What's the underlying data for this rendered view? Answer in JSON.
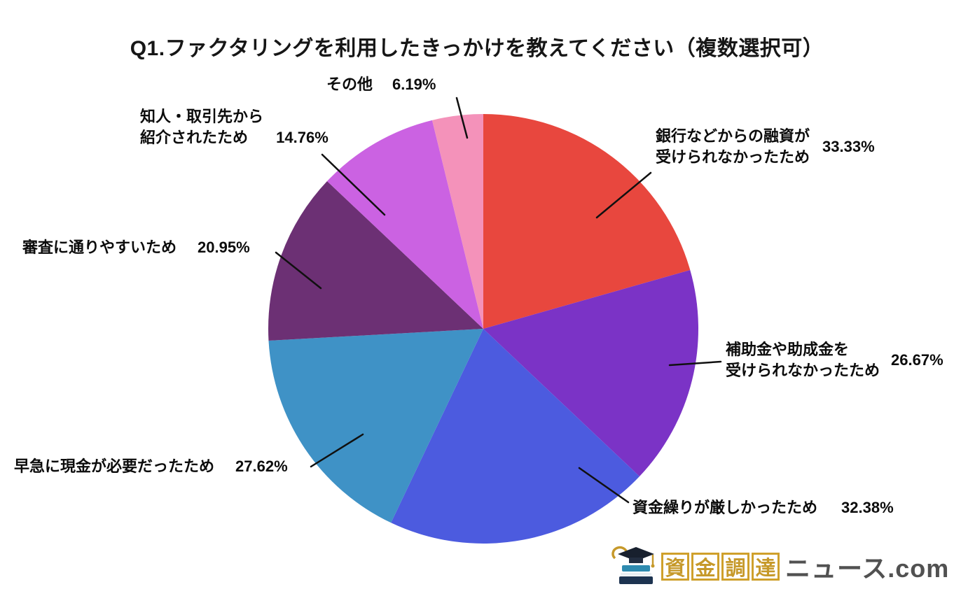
{
  "title": "Q1.ファクタリングを利用したきっかけを教えてください（複数選択可）",
  "chart_data": {
    "type": "pie",
    "title": "Q1.ファクタリングを利用したきっかけを教えてください（複数選択可）",
    "unit": "%",
    "note": "複数選択可 — percentages sum to 161.9; slice angles drawn proportional to values, clockwise from 12 o'clock",
    "direction": "clockwise",
    "start_angle": "12-o'clock",
    "slices": [
      {
        "key": "bank-loan",
        "label": "銀行などからの融資が受けられなかったため",
        "value": 33.33,
        "display": "33.33%",
        "color": "#E8473E"
      },
      {
        "key": "subsidy",
        "label": "補助金や助成金を受けられなかったため",
        "value": 26.67,
        "display": "26.67%",
        "color": "#7B33C6"
      },
      {
        "key": "cash-flow",
        "label": "資金繰りが厳しかったため",
        "value": 32.38,
        "display": "32.38%",
        "color": "#4C5BDF"
      },
      {
        "key": "urgent-cash",
        "label": "早急に現金が必要だったため",
        "value": 27.62,
        "display": "27.62%",
        "color": "#3F92C6"
      },
      {
        "key": "screening",
        "label": "審査に通りやすいため",
        "value": 20.95,
        "display": "20.95%",
        "color": "#6C3074"
      },
      {
        "key": "referral",
        "label": "知人・取引先から紹介されたため",
        "value": 14.76,
        "display": "14.76%",
        "color": "#CB62E2"
      },
      {
        "key": "other",
        "label": "その他",
        "value": 6.19,
        "display": "6.19%",
        "color": "#F492BA"
      }
    ]
  },
  "callouts": {
    "bank": {
      "line1": "銀行などからの融資が",
      "line2": "受けられなかったため"
    },
    "subsidy": {
      "line1": "補助金や助成金を",
      "line2": "受けられなかったため"
    },
    "cashflow": {
      "text": "資金繰りが厳しかったため"
    },
    "urgent": {
      "text": "早急に現金が必要だったため"
    },
    "screening": {
      "text": "審査に通りやすいため"
    },
    "referral": {
      "line1": "知人・取引先から",
      "line2": "紹介されたため"
    },
    "other": {
      "text": "その他"
    }
  },
  "logo": {
    "boxed_chars": [
      "資",
      "金",
      "調",
      "達"
    ],
    "suffix": "ニュース.com",
    "box_color": "#CFA02B",
    "text_color": "#515151"
  }
}
